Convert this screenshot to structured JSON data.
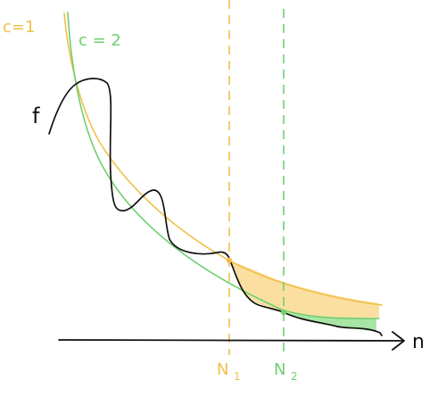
{
  "labels": {
    "curve_c1": "c=1",
    "curve_c2": "c = 2",
    "function": "f",
    "n1_main": "N",
    "n1_sub": "1",
    "n2_main": "N",
    "n2_sub": "2",
    "axis": "n"
  },
  "colors": {
    "c1": "#f0c04a",
    "c1_fill": "#f9d991",
    "c2": "#6fcf6f",
    "c2_fill": "#9fe29a",
    "function": "#111111",
    "axis": "#111111"
  }
}
